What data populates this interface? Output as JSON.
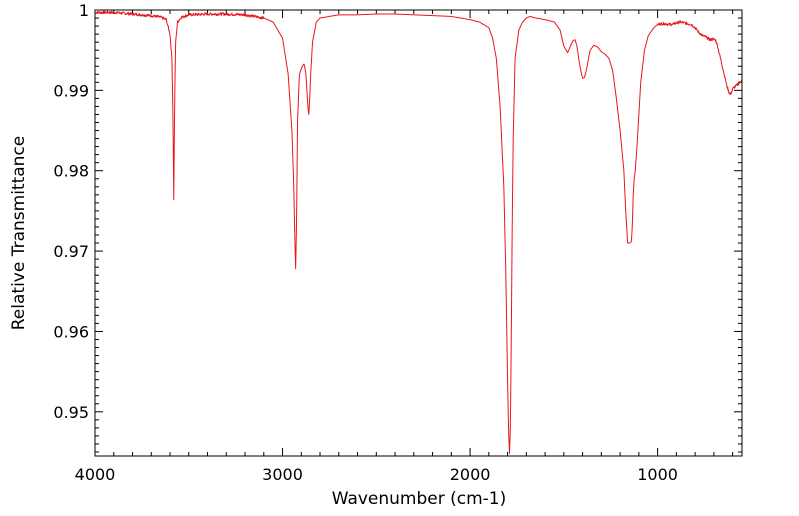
{
  "chart_data": {
    "type": "line",
    "title": "",
    "xlabel": "Wavenumber (cm-1)",
    "ylabel": "Relative Transmittance",
    "xlim": [
      4000,
      550
    ],
    "ylim": [
      0.9445,
      1.0
    ],
    "x_reversed": true,
    "grid": false,
    "legend": "none",
    "line_color": "#e8151b",
    "xticks": [
      {
        "value": 4000,
        "label": "4000"
      },
      {
        "value": 3000,
        "label": "3000"
      },
      {
        "value": 2000,
        "label": "2000"
      },
      {
        "value": 1000,
        "label": "1000"
      }
    ],
    "yticks": [
      {
        "value": 1.0,
        "label": "1"
      },
      {
        "value": 0.99,
        "label": "0.99"
      },
      {
        "value": 0.98,
        "label": "0.98"
      },
      {
        "value": 0.97,
        "label": "0.97"
      },
      {
        "value": 0.96,
        "label": "0.96"
      },
      {
        "value": 0.95,
        "label": "0.95"
      }
    ],
    "series": [
      {
        "x": [
          4000,
          3900,
          3800,
          3700,
          3650,
          3620,
          3600,
          3590,
          3585,
          3580,
          3575,
          3570,
          3560,
          3540,
          3500,
          3400,
          3300,
          3200,
          3100,
          3050,
          3000,
          2970,
          2950,
          2940,
          2935,
          2930,
          2925,
          2920,
          2910,
          2895,
          2885,
          2875,
          2865,
          2860,
          2855,
          2850,
          2840,
          2820,
          2800,
          2700,
          2600,
          2500,
          2400,
          2300,
          2200,
          2100,
          2000,
          1950,
          1900,
          1880,
          1860,
          1840,
          1820,
          1810,
          1800,
          1795,
          1790,
          1785,
          1780,
          1775,
          1770,
          1760,
          1740,
          1720,
          1700,
          1680,
          1650,
          1600,
          1550,
          1520,
          1500,
          1480,
          1470,
          1460,
          1450,
          1440,
          1430,
          1420,
          1410,
          1400,
          1390,
          1380,
          1370,
          1360,
          1340,
          1320,
          1300,
          1280,
          1260,
          1240,
          1220,
          1200,
          1180,
          1170,
          1160,
          1150,
          1140,
          1135,
          1130,
          1125,
          1120,
          1110,
          1100,
          1090,
          1080,
          1070,
          1050,
          1020,
          1000,
          980,
          960,
          940,
          920,
          900,
          880,
          860,
          840,
          820,
          800,
          780,
          760,
          740,
          720,
          700,
          690,
          680,
          670,
          660,
          650,
          640,
          630,
          620,
          610,
          600,
          580,
          560,
          550
        ],
        "y": [
          0.9997,
          0.9997,
          0.9995,
          0.9993,
          0.9991,
          0.9988,
          0.997,
          0.994,
          0.988,
          0.9765,
          0.989,
          0.996,
          0.9985,
          0.9991,
          0.9994,
          0.9995,
          0.9995,
          0.9994,
          0.999,
          0.9985,
          0.9965,
          0.992,
          0.985,
          0.978,
          0.972,
          0.9678,
          0.974,
          0.986,
          0.992,
          0.993,
          0.9933,
          0.992,
          0.988,
          0.987,
          0.989,
          0.992,
          0.996,
          0.9985,
          0.999,
          0.9994,
          0.9994,
          0.9995,
          0.9995,
          0.9994,
          0.9993,
          0.9992,
          0.9988,
          0.9985,
          0.9978,
          0.9965,
          0.994,
          0.988,
          0.978,
          0.968,
          0.954,
          0.948,
          0.9448,
          0.948,
          0.96,
          0.974,
          0.984,
          0.994,
          0.9975,
          0.9985,
          0.999,
          0.9992,
          0.999,
          0.9988,
          0.9985,
          0.9975,
          0.9955,
          0.9947,
          0.9952,
          0.9958,
          0.9962,
          0.9963,
          0.9955,
          0.9938,
          0.9925,
          0.9915,
          0.9916,
          0.9925,
          0.9938,
          0.995,
          0.9956,
          0.9954,
          0.9948,
          0.9945,
          0.994,
          0.9925,
          0.989,
          0.985,
          0.98,
          0.975,
          0.971,
          0.971,
          0.9712,
          0.973,
          0.977,
          0.979,
          0.9798,
          0.983,
          0.987,
          0.991,
          0.993,
          0.995,
          0.9968,
          0.9978,
          0.9982,
          0.9983,
          0.9983,
          0.9982,
          0.9982,
          0.9984,
          0.9985,
          0.9984,
          0.9983,
          0.9982,
          0.9978,
          0.9972,
          0.9968,
          0.9966,
          0.9963,
          0.9964,
          0.9962,
          0.9955,
          0.9945,
          0.9935,
          0.9925,
          0.9915,
          0.9905,
          0.9898,
          0.9895,
          0.9902,
          0.9906,
          0.991,
          0.9915
        ]
      }
    ]
  }
}
